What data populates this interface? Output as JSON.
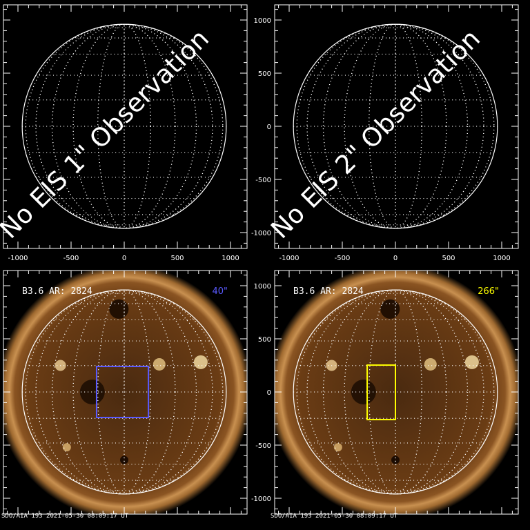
{
  "chart_data": [
    {
      "type": "image",
      "panel": "top-left",
      "overlay_text": "No EIS 1\" Observation",
      "xlim": [
        -1150,
        1150
      ],
      "ylim": [
        -1150,
        1150
      ],
      "xticks": [
        -1000,
        -500,
        0,
        500,
        1000
      ],
      "yticks": [
        -1000,
        -500,
        0,
        500,
        1000
      ],
      "show_ylabels": false,
      "show_xlabels": true,
      "sun": false
    },
    {
      "type": "image",
      "panel": "top-right",
      "overlay_text": "No EIS 2\" Observation",
      "xlim": [
        -1150,
        1150
      ],
      "ylim": [
        -1150,
        1150
      ],
      "xticks": [
        -1000,
        -500,
        0,
        500,
        1000
      ],
      "yticks": [
        -1000,
        -500,
        0,
        500,
        1000
      ],
      "show_ylabels": true,
      "show_xlabels": true,
      "sun": false
    },
    {
      "type": "image",
      "panel": "bottom-left",
      "label": "B3.6 AR: 2824",
      "slit_label": "40\"",
      "slit_color": "#5a5aff",
      "box": {
        "x": [
          -260,
          228
        ],
        "y": [
          -240,
          240
        ]
      },
      "xlim": [
        -1150,
        1150
      ],
      "ylim": [
        -1150,
        1150
      ],
      "yticks": [
        -1000,
        -500,
        0,
        500,
        1000
      ],
      "show_ylabels": false,
      "show_xlabels": false,
      "sun": true,
      "footer": "SDO/AIA 193   2021-05-30 08:09:17 UT"
    },
    {
      "type": "image",
      "panel": "bottom-right",
      "label": "B3.6 AR: 2824",
      "slit_label": "266\"",
      "slit_color": "#ffff00",
      "box": {
        "x": [
          -266,
          0
        ],
        "y": [
          -260,
          253
        ]
      },
      "xlim": [
        -1150,
        1150
      ],
      "ylim": [
        -1150,
        1150
      ],
      "yticks": [
        -1000,
        -500,
        0,
        500,
        1000
      ],
      "show_ylabels": true,
      "show_xlabels": false,
      "sun": true,
      "footer": "SDO/AIA 193   2021-05-30 08:09:17 UT"
    }
  ]
}
